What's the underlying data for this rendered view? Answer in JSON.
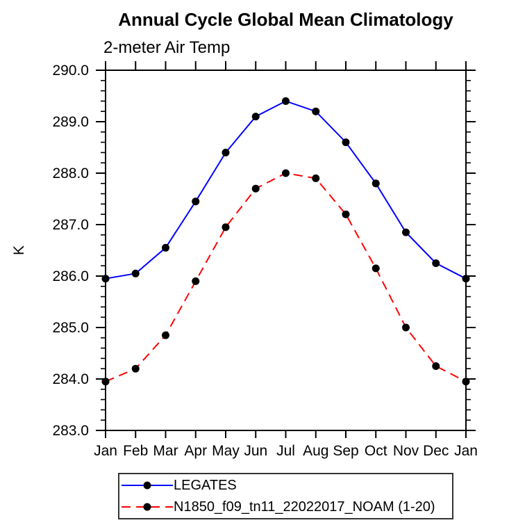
{
  "title": "Annual Cycle Global Mean Climatology",
  "subtitle": "2-meter Air Temp",
  "colors": {
    "legates_line": "#0000ff",
    "n1850_line": "#ff0000",
    "marker": "#000000",
    "axis": "#000000"
  },
  "chart_data": {
    "type": "line",
    "x": [
      "Jan",
      "Feb",
      "Mar",
      "Apr",
      "May",
      "Jun",
      "Jul",
      "Aug",
      "Sep",
      "Oct",
      "Nov",
      "Dec",
      "Jan"
    ],
    "xlabel": "",
    "ylabel": "K",
    "ylim": [
      283.0,
      290.0
    ],
    "ytick_interval": 1.0,
    "yminor_interval": 0.2,
    "ytick_labels": [
      "283.0",
      "284.0",
      "285.0",
      "286.0",
      "287.0",
      "288.0",
      "289.0",
      "290.0"
    ],
    "grid": false,
    "legend_position": "bottom",
    "series": [
      {
        "name": "LEGATES",
        "color": "#0000ff",
        "line_style": "solid",
        "marker": "filled-circle",
        "marker_color": "#000000",
        "values": [
          285.95,
          286.05,
          286.55,
          287.45,
          288.4,
          289.1,
          289.4,
          289.2,
          288.6,
          287.8,
          286.85,
          286.25,
          285.95
        ]
      },
      {
        "name": "N1850_f09_tn11_22022017_NOAM (1-20)",
        "color": "#ff0000",
        "line_style": "dashed",
        "marker": "filled-circle",
        "marker_color": "#000000",
        "values": [
          283.95,
          284.2,
          284.85,
          285.9,
          286.95,
          287.7,
          288.0,
          287.9,
          287.2,
          286.15,
          285.0,
          284.25,
          283.95
        ]
      }
    ]
  }
}
